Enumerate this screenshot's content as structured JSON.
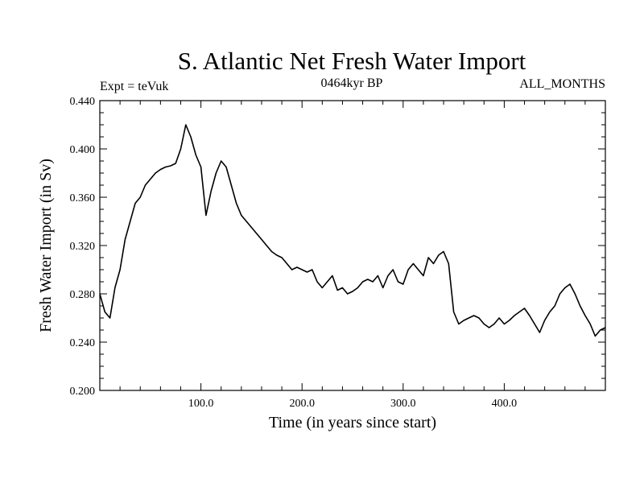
{
  "chart_data": {
    "type": "line",
    "title": "S. Atlantic Net Fresh Water Import",
    "subtitle_left": "Expt = teVuk",
    "subtitle_center": "0464kyr BP",
    "subtitle_right": "ALL_MONTHS",
    "xlabel": "Time (in years since start)",
    "ylabel": "Fresh Water Import (in Sv)",
    "xlim": [
      0,
      500
    ],
    "ylim": [
      0.2,
      0.44
    ],
    "xticks": [
      100,
      200,
      300,
      400
    ],
    "xtick_labels": [
      "100.0",
      "200.0",
      "300.0",
      "400.0"
    ],
    "yticks": [
      0.2,
      0.24,
      0.28,
      0.32,
      0.36,
      0.4,
      0.44
    ],
    "ytick_labels": [
      "0.200",
      "0.240",
      "0.280",
      "0.320",
      "0.360",
      "0.400",
      "0.440"
    ],
    "grid": false,
    "series": [
      {
        "color": "#000000",
        "x": [
          0,
          5,
          10,
          15,
          20,
          25,
          30,
          35,
          40,
          45,
          50,
          55,
          60,
          65,
          70,
          75,
          80,
          85,
          90,
          95,
          100,
          105,
          110,
          115,
          120,
          125,
          130,
          135,
          140,
          145,
          150,
          155,
          160,
          165,
          170,
          175,
          180,
          185,
          190,
          195,
          200,
          205,
          210,
          215,
          220,
          225,
          230,
          235,
          240,
          245,
          250,
          255,
          260,
          265,
          270,
          275,
          280,
          285,
          290,
          295,
          300,
          305,
          310,
          315,
          320,
          325,
          330,
          335,
          340,
          345,
          350,
          355,
          360,
          365,
          370,
          375,
          380,
          385,
          390,
          395,
          400,
          405,
          410,
          415,
          420,
          425,
          430,
          435,
          440,
          445,
          450,
          455,
          460,
          465,
          470,
          475,
          480,
          485,
          490,
          495,
          500
        ],
        "y": [
          0.28,
          0.265,
          0.26,
          0.285,
          0.3,
          0.325,
          0.34,
          0.355,
          0.36,
          0.37,
          0.375,
          0.38,
          0.383,
          0.385,
          0.386,
          0.388,
          0.4,
          0.42,
          0.41,
          0.395,
          0.385,
          0.345,
          0.365,
          0.38,
          0.39,
          0.385,
          0.37,
          0.355,
          0.345,
          0.34,
          0.335,
          0.33,
          0.325,
          0.32,
          0.315,
          0.312,
          0.31,
          0.305,
          0.3,
          0.302,
          0.3,
          0.298,
          0.3,
          0.29,
          0.285,
          0.29,
          0.295,
          0.283,
          0.285,
          0.28,
          0.282,
          0.285,
          0.29,
          0.292,
          0.29,
          0.295,
          0.285,
          0.295,
          0.3,
          0.29,
          0.288,
          0.3,
          0.305,
          0.3,
          0.295,
          0.31,
          0.305,
          0.312,
          0.315,
          0.305,
          0.265,
          0.255,
          0.258,
          0.26,
          0.262,
          0.26,
          0.255,
          0.252,
          0.255,
          0.26,
          0.255,
          0.258,
          0.262,
          0.265,
          0.268,
          0.262,
          0.255,
          0.248,
          0.258,
          0.265,
          0.27,
          0.28,
          0.285,
          0.288,
          0.28,
          0.27,
          0.262,
          0.255,
          0.245,
          0.25,
          0.252
        ]
      }
    ]
  }
}
